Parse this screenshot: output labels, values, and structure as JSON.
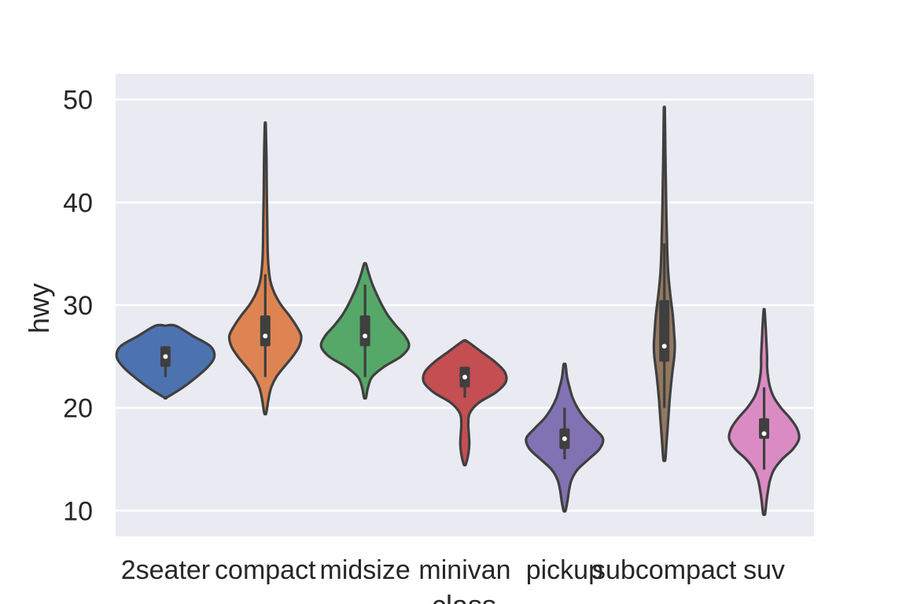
{
  "chart_data": {
    "type": "violin",
    "xlabel": "class",
    "ylabel": "hwy",
    "ylim": [
      7.5,
      52.5
    ],
    "yticks": [
      10,
      20,
      30,
      40,
      50
    ],
    "grid": true,
    "background": "#eaeaf2",
    "categories": [
      "2seater",
      "compact",
      "midsize",
      "minivan",
      "pickup",
      "subcompact",
      "suv"
    ],
    "colors": [
      "#4c72b0",
      "#dd8452",
      "#55a868",
      "#c44e52",
      "#8172b3",
      "#937860",
      "#da8bc3"
    ],
    "series": [
      {
        "category": "2seater",
        "min": 21,
        "max": 28,
        "q1": 24,
        "median": 25,
        "q3": 26,
        "whisker_low": 23,
        "whisker_high": 26,
        "density": [
          [
            21,
            0.02
          ],
          [
            22,
            0.35
          ],
          [
            23,
            0.62
          ],
          [
            24,
            0.85
          ],
          [
            25,
            0.98
          ],
          [
            26,
            0.9
          ],
          [
            27,
            0.55
          ],
          [
            28,
            0.2
          ]
        ]
      },
      {
        "category": "compact",
        "min": 19.5,
        "max": 47.5,
        "q1": 26,
        "median": 27,
        "q3": 29,
        "whisker_low": 23,
        "whisker_high": 33,
        "density": [
          [
            19.5,
            0.02
          ],
          [
            21,
            0.07
          ],
          [
            22,
            0.12
          ],
          [
            23,
            0.22
          ],
          [
            24,
            0.38
          ],
          [
            25,
            0.55
          ],
          [
            26,
            0.68
          ],
          [
            27,
            0.72
          ],
          [
            28,
            0.62
          ],
          [
            29,
            0.48
          ],
          [
            30,
            0.32
          ],
          [
            31,
            0.2
          ],
          [
            32,
            0.12
          ],
          [
            33,
            0.08
          ],
          [
            35,
            0.05
          ],
          [
            38,
            0.04
          ],
          [
            41,
            0.03
          ],
          [
            44,
            0.025
          ],
          [
            47.5,
            0.01
          ]
        ]
      },
      {
        "category": "midsize",
        "min": 21,
        "max": 34,
        "q1": 26,
        "median": 27,
        "q3": 29,
        "whisker_low": 23,
        "whisker_high": 32,
        "density": [
          [
            21,
            0.02
          ],
          [
            22,
            0.06
          ],
          [
            23,
            0.14
          ],
          [
            24,
            0.38
          ],
          [
            25,
            0.72
          ],
          [
            26,
            0.88
          ],
          [
            27,
            0.8
          ],
          [
            28,
            0.62
          ],
          [
            29,
            0.46
          ],
          [
            30,
            0.34
          ],
          [
            31,
            0.24
          ],
          [
            32,
            0.15
          ],
          [
            33,
            0.08
          ],
          [
            34,
            0.02
          ]
        ]
      },
      {
        "category": "minivan",
        "min": 14.5,
        "max": 26.5,
        "q1": 22,
        "median": 23,
        "q3": 24,
        "whisker_low": 21,
        "whisker_high": 24,
        "density": [
          [
            14.5,
            0.02
          ],
          [
            15.5,
            0.07
          ],
          [
            16.5,
            0.09
          ],
          [
            17.5,
            0.08
          ],
          [
            18.5,
            0.07
          ],
          [
            19.5,
            0.1
          ],
          [
            20.5,
            0.28
          ],
          [
            21.5,
            0.62
          ],
          [
            22.5,
            0.82
          ],
          [
            23.5,
            0.8
          ],
          [
            24.5,
            0.6
          ],
          [
            25.5,
            0.32
          ],
          [
            26.5,
            0.04
          ]
        ]
      },
      {
        "category": "pickup",
        "min": 10,
        "max": 24.2,
        "q1": 16,
        "median": 17,
        "q3": 18,
        "whisker_low": 15,
        "whisker_high": 20,
        "density": [
          [
            10,
            0.02
          ],
          [
            11,
            0.06
          ],
          [
            12,
            0.09
          ],
          [
            13,
            0.14
          ],
          [
            14,
            0.26
          ],
          [
            15,
            0.48
          ],
          [
            16,
            0.7
          ],
          [
            17,
            0.77
          ],
          [
            18,
            0.6
          ],
          [
            19,
            0.4
          ],
          [
            20,
            0.26
          ],
          [
            21,
            0.16
          ],
          [
            22,
            0.1
          ],
          [
            23,
            0.05
          ],
          [
            24.2,
            0.02
          ]
        ]
      },
      {
        "category": "subcompact",
        "min": 15,
        "max": 49,
        "q1": 24.5,
        "median": 26,
        "q3": 30.5,
        "whisker_low": 20,
        "whisker_high": 36,
        "density": [
          [
            15,
            0.02
          ],
          [
            17,
            0.05
          ],
          [
            19,
            0.08
          ],
          [
            21,
            0.11
          ],
          [
            23,
            0.15
          ],
          [
            25,
            0.2
          ],
          [
            26,
            0.21
          ],
          [
            27,
            0.2
          ],
          [
            29,
            0.17
          ],
          [
            31,
            0.12
          ],
          [
            33,
            0.08
          ],
          [
            35,
            0.06
          ],
          [
            37,
            0.05
          ],
          [
            39,
            0.04
          ],
          [
            42,
            0.03
          ],
          [
            45,
            0.02
          ],
          [
            49,
            0.01
          ]
        ]
      },
      {
        "category": "suv",
        "min": 9.7,
        "max": 29.5,
        "q1": 17,
        "median": 17.5,
        "q3": 19,
        "whisker_low": 14,
        "whisker_high": 22,
        "density": [
          [
            9.7,
            0.02
          ],
          [
            11,
            0.05
          ],
          [
            12,
            0.08
          ],
          [
            13,
            0.12
          ],
          [
            14,
            0.2
          ],
          [
            15,
            0.36
          ],
          [
            16,
            0.58
          ],
          [
            17,
            0.7
          ],
          [
            18,
            0.66
          ],
          [
            19,
            0.52
          ],
          [
            20,
            0.34
          ],
          [
            21,
            0.2
          ],
          [
            22,
            0.12
          ],
          [
            23,
            0.08
          ],
          [
            24,
            0.06
          ],
          [
            25,
            0.06
          ],
          [
            26,
            0.05
          ],
          [
            27,
            0.04
          ],
          [
            28,
            0.03
          ],
          [
            29.5,
            0.01
          ]
        ]
      }
    ]
  }
}
